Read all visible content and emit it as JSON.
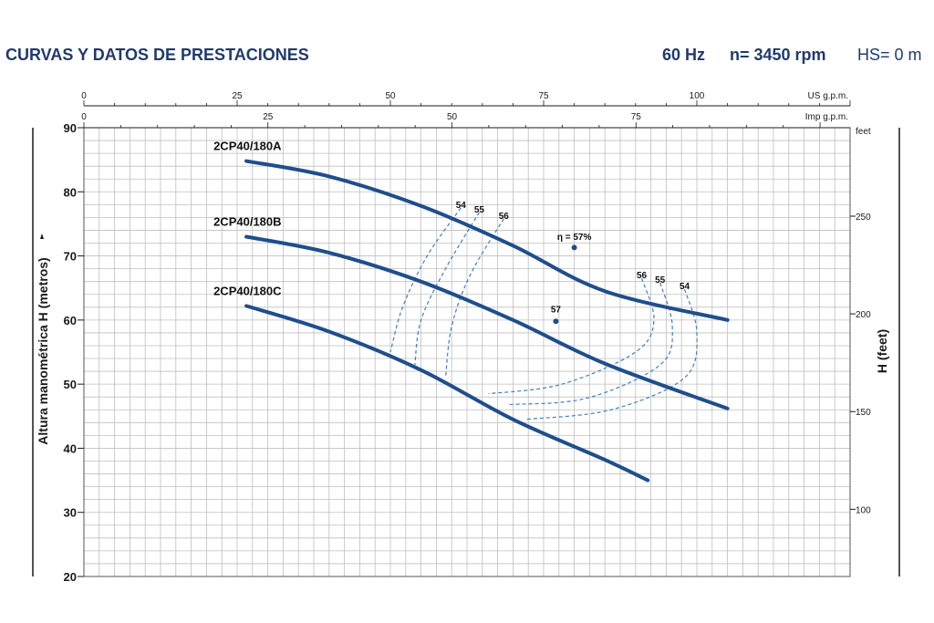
{
  "header": {
    "title": "CURVAS Y DATOS DE PRESTACIONES",
    "frequency": "60 Hz",
    "speed": "n= 3450 rpm",
    "hs": "HS= 0 m"
  },
  "colors": {
    "curve": "#1f4e8c",
    "efficiency": "#3f7fc0",
    "grid": "#bfbfbf",
    "axis": "#1a1a1a"
  },
  "chart_data": {
    "type": "line",
    "title": "",
    "ylabel": "Altura manométrica H  (metros)",
    "ylabel_right": "H (feet)",
    "ylabel_right_unit": "feet",
    "xlabel_top_us": "US g.p.m.",
    "xlabel_top_imp": "Imp g.p.m.",
    "ylim": [
      20,
      90
    ],
    "y_ticks": [
      20,
      30,
      40,
      50,
      60,
      70,
      80,
      90
    ],
    "xlim_us": [
      0,
      125
    ],
    "x_ticks_us": [
      0,
      25,
      50,
      75,
      100
    ],
    "x_ticks_imp": [
      0,
      25,
      50,
      75
    ],
    "y_ticks_feet": [
      100,
      150,
      200,
      250
    ],
    "series": [
      {
        "name": "2CP40/180A",
        "x": [
          26.5,
          40,
          55,
          70,
          85,
          105
        ],
        "y": [
          84.8,
          82.4,
          77.8,
          71.6,
          64.5,
          60.0
        ]
      },
      {
        "name": "2CP40/180B",
        "x": [
          26.5,
          40,
          55,
          70,
          85,
          105
        ],
        "y": [
          73.0,
          70.5,
          66.0,
          60.0,
          53.2,
          46.2
        ]
      },
      {
        "name": "2CP40/180C",
        "x": [
          26.5,
          40,
          55,
          70,
          85,
          92
        ],
        "y": [
          62.2,
          58.2,
          52.2,
          44.5,
          38.2,
          35.0
        ]
      }
    ],
    "efficiency_labels": [
      {
        "text": "54",
        "x": 61.5,
        "y": 77.5
      },
      {
        "text": "55",
        "x": 64.5,
        "y": 76.8
      },
      {
        "text": "56",
        "x": 68.5,
        "y": 75.8
      },
      {
        "text": "η = 57%",
        "x": 80,
        "y": 72.5
      },
      {
        "text": "56",
        "x": 91,
        "y": 66.5
      },
      {
        "text": "55",
        "x": 94,
        "y": 65.8
      },
      {
        "text": "54",
        "x": 98,
        "y": 64.8
      },
      {
        "text": "57",
        "x": 77,
        "y": 61.2
      }
    ]
  }
}
